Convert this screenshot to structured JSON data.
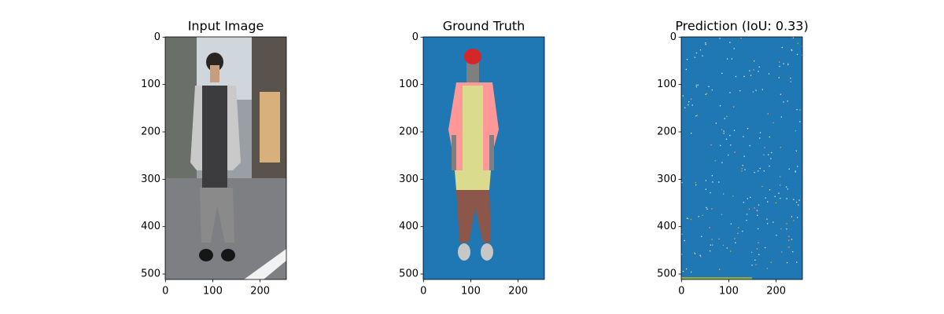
{
  "chart_data": [
    {
      "type": "image",
      "title": "Input Image",
      "xlim": [
        -0.5,
        255.5
      ],
      "ylim": [
        511.5,
        -0.5
      ],
      "xticks": [
        0,
        100,
        200
      ],
      "yticks": [
        0,
        100,
        200,
        300,
        400,
        500
      ]
    },
    {
      "type": "image",
      "title": "Ground Truth",
      "xlim": [
        -0.5,
        255.5
      ],
      "ylim": [
        511.5,
        -0.5
      ],
      "xticks": [
        0,
        100,
        200
      ],
      "yticks": [
        0,
        100,
        200,
        300,
        400,
        500
      ]
    },
    {
      "type": "image",
      "title": "Prediction (IoU: 0.33)",
      "xlim": [
        -0.5,
        255.5
      ],
      "ylim": [
        511.5,
        -0.5
      ],
      "xticks": [
        0,
        100,
        200
      ],
      "yticks": [
        0,
        100,
        200,
        300,
        400,
        500
      ]
    }
  ]
}
